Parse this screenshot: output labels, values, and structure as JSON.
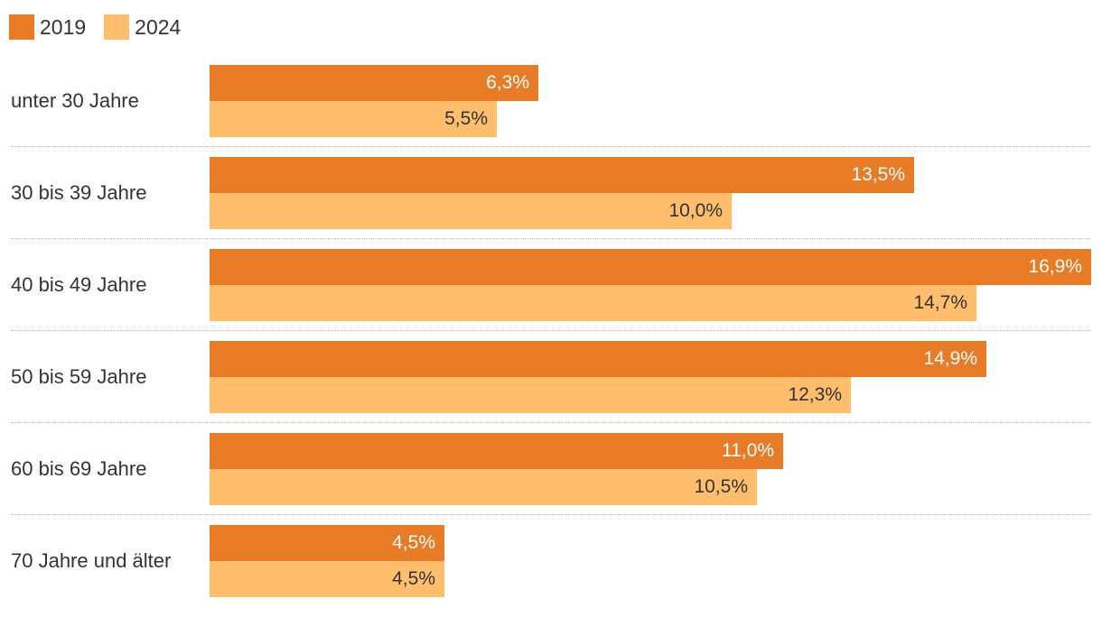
{
  "chart_data": {
    "type": "bar",
    "orientation": "horizontal",
    "categories": [
      "unter 30 Jahre",
      "30 bis 39 Jahre",
      "40 bis 49 Jahre",
      "50 bis 59 Jahre",
      "60 bis 69 Jahre",
      "70 Jahre und älter"
    ],
    "series": [
      {
        "name": "2019",
        "color": "#E87B26",
        "values": [
          6.3,
          13.5,
          16.9,
          14.9,
          11.0,
          4.5
        ],
        "labels": [
          "6,3%",
          "13,5%",
          "16,9%",
          "14,9%",
          "11,0%",
          "4,5%"
        ]
      },
      {
        "name": "2024",
        "color": "#FFBE6B",
        "values": [
          5.5,
          10.0,
          14.7,
          12.3,
          10.5,
          4.5
        ],
        "labels": [
          "5,5%",
          "10,0%",
          "14,7%",
          "12,3%",
          "10,5%",
          "4,5%"
        ]
      }
    ],
    "xlim": [
      0,
      16.9
    ],
    "unit": "%",
    "grid": false,
    "legend": "top-left"
  }
}
